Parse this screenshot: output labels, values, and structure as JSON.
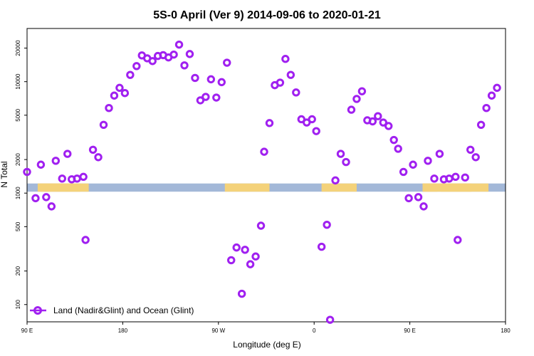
{
  "chart_data": {
    "type": "scatter",
    "title": "5S-0 April (Ver 9)   2014-09-06 to 2020-01-21",
    "xlabel": "Longitude (deg E)",
    "ylabel": "N Total",
    "xlim": [
      90,
      540
    ],
    "ylim_log": [
      70,
      30000
    ],
    "y_scale": "log",
    "x_ticks": [
      {
        "value": 90,
        "label": "90 E"
      },
      {
        "value": 180,
        "label": "180"
      },
      {
        "value": 270,
        "label": "90 W"
      },
      {
        "value": 360,
        "label": "0"
      },
      {
        "value": 450,
        "label": "90 E"
      },
      {
        "value": 540,
        "label": "180"
      }
    ],
    "y_ticks": [
      {
        "value": 100,
        "label": "100"
      },
      {
        "value": 200,
        "label": "200"
      },
      {
        "value": 500,
        "label": "500"
      },
      {
        "value": 1000,
        "label": "1000"
      },
      {
        "value": 2000,
        "label": "2000"
      },
      {
        "value": 5000,
        "label": "5000"
      },
      {
        "value": 10000,
        "label": "10000"
      },
      {
        "value": 20000,
        "label": "20000"
      }
    ],
    "land_band": {
      "y_low": 1030,
      "y_high": 1220,
      "ocean_color": "#a3b8d8",
      "land_color": "#f4d27a",
      "land_segments": [
        [
          102,
          148
        ],
        [
          276,
          318
        ],
        [
          100,
          140
        ],
        [
          367,
          400
        ],
        [
          462,
          476
        ],
        [
          479,
          524
        ]
      ]
    },
    "series": [
      {
        "name": "Land (Nadir&Glint) and Ocean (Glint)",
        "color": "#a020f0",
        "points": [
          [
            90,
            1550
          ],
          [
            98,
            900
          ],
          [
            103,
            1800
          ],
          [
            108,
            920
          ],
          [
            113,
            760
          ],
          [
            117,
            1950
          ],
          [
            123,
            1350
          ],
          [
            128,
            2250
          ],
          [
            132,
            1330
          ],
          [
            137,
            1350
          ],
          [
            143,
            1400
          ],
          [
            145,
            380
          ],
          [
            152,
            2450
          ],
          [
            157,
            2100
          ],
          [
            162,
            4100
          ],
          [
            167,
            5800
          ],
          [
            172,
            7500
          ],
          [
            177,
            8800
          ],
          [
            182,
            7900
          ],
          [
            187,
            11500
          ],
          [
            193,
            13800
          ],
          [
            198,
            17200
          ],
          [
            203,
            16200
          ],
          [
            208,
            15300
          ],
          [
            213,
            17000
          ],
          [
            218,
            17300
          ],
          [
            223,
            16500
          ],
          [
            228,
            17500
          ],
          [
            233,
            21500
          ],
          [
            238,
            14000
          ],
          [
            243,
            17700
          ],
          [
            248,
            10800
          ],
          [
            253,
            6800
          ],
          [
            258,
            7300
          ],
          [
            263,
            10500
          ],
          [
            268,
            7200
          ],
          [
            273,
            9900
          ],
          [
            278,
            14800
          ],
          [
            282,
            250
          ],
          [
            287,
            325
          ],
          [
            292,
            125
          ],
          [
            295,
            310
          ],
          [
            300,
            230
          ],
          [
            305,
            270
          ],
          [
            310,
            510
          ],
          [
            313,
            2350
          ],
          [
            318,
            4250
          ],
          [
            323,
            9300
          ],
          [
            328,
            9800
          ],
          [
            333,
            16000
          ],
          [
            338,
            11500
          ],
          [
            343,
            8000
          ],
          [
            348,
            4600
          ],
          [
            353,
            4300
          ],
          [
            358,
            4600
          ],
          [
            362,
            3600
          ],
          [
            367,
            330
          ],
          [
            372,
            520
          ],
          [
            375,
            73
          ],
          [
            380,
            1300
          ],
          [
            385,
            2250
          ],
          [
            390,
            1900
          ],
          [
            395,
            5600
          ],
          [
            400,
            7000
          ],
          [
            405,
            8200
          ],
          [
            410,
            4500
          ],
          [
            415,
            4400
          ],
          [
            420,
            4900
          ],
          [
            425,
            4300
          ],
          [
            430,
            4000
          ],
          [
            435,
            3000
          ],
          [
            439,
            2500
          ],
          [
            444,
            1550
          ],
          [
            449,
            900
          ],
          [
            453,
            1800
          ],
          [
            458,
            920
          ],
          [
            463,
            760
          ],
          [
            467,
            1950
          ],
          [
            473,
            1350
          ],
          [
            478,
            2250
          ],
          [
            482,
            1330
          ],
          [
            487,
            1350
          ],
          [
            493,
            1400
          ],
          [
            495,
            380
          ],
          [
            502,
            1380
          ],
          [
            507,
            2450
          ],
          [
            512,
            2100
          ],
          [
            517,
            4100
          ],
          [
            522,
            5800
          ],
          [
            527,
            7500
          ],
          [
            532,
            8800
          ]
        ]
      }
    ]
  }
}
